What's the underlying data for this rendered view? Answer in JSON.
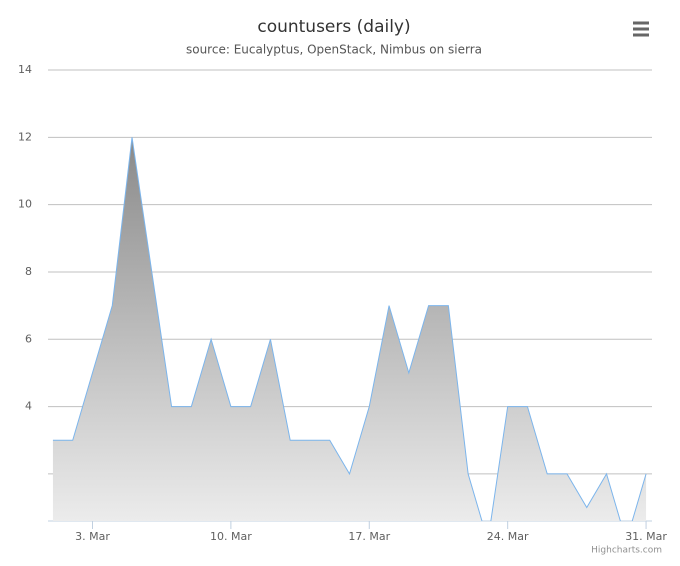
{
  "chart_data": {
    "type": "area",
    "title": "countusers (daily)",
    "subtitle": "source: Eucalyptus, OpenStack, Nimbus on sierra",
    "credits": "Highcharts.com",
    "x": [
      1,
      2,
      3,
      4,
      5,
      6,
      7,
      8,
      9,
      10,
      11,
      12,
      13,
      14,
      15,
      16,
      17,
      18,
      19,
      20,
      21,
      22,
      23,
      24,
      25,
      26,
      27,
      28,
      29,
      30,
      31
    ],
    "series": [
      {
        "color": "#7cb5ec",
        "values": [
          3,
          3,
          5,
          7,
          12,
          8,
          4,
          4,
          6,
          4,
          4,
          6,
          3,
          3,
          3,
          2,
          4,
          7,
          5,
          7,
          7,
          2,
          0,
          4,
          4,
          2,
          2,
          1,
          2,
          0,
          2
        ]
      }
    ],
    "xlim": [
      0.75,
      31.3
    ],
    "xticks": [
      {
        "value": 3,
        "label": "3. Mar"
      },
      {
        "value": 10,
        "label": "10. Mar"
      },
      {
        "value": 17,
        "label": "17. Mar"
      },
      {
        "value": 24,
        "label": "24. Mar"
      },
      {
        "value": 31,
        "label": "31. Mar"
      }
    ],
    "ylim": [
      0.6,
      14
    ],
    "yticks": [
      4,
      6,
      8,
      10,
      12,
      14
    ],
    "unlabeled_gridlines": [
      2
    ],
    "grid": true
  }
}
